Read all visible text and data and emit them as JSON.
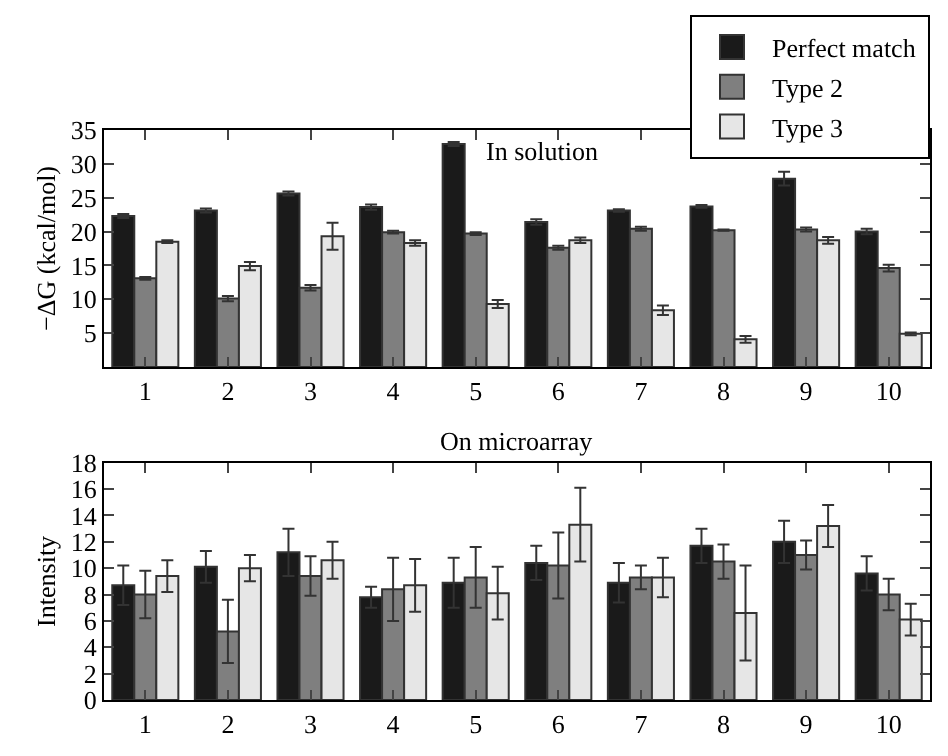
{
  "chart_data": [
    {
      "type": "bar",
      "title": "In solution",
      "ylabel": "−ΔG (kcal/mol)",
      "categories": [
        "1",
        "2",
        "3",
        "4",
        "5",
        "6",
        "7",
        "8",
        "9",
        "10"
      ],
      "ylim": [
        0,
        35
      ],
      "yticks": [
        5,
        10,
        15,
        20,
        25,
        30,
        35
      ],
      "legend": "top right",
      "series": [
        {
          "name": "Perfect match",
          "color": "#1a1a1a",
          "values": [
            22.3,
            23.1,
            25.6,
            23.6,
            32.9,
            21.4,
            23.1,
            23.7,
            27.8,
            20.0
          ],
          "errors": [
            0.3,
            0.3,
            0.3,
            0.4,
            0.3,
            0.4,
            0.2,
            0.2,
            1.0,
            0.4
          ]
        },
        {
          "name": "Type 2",
          "color": "#7f7f7f",
          "values": [
            13.1,
            10.1,
            11.7,
            19.9,
            19.7,
            17.6,
            20.4,
            20.2,
            20.3,
            14.6
          ],
          "errors": [
            0.2,
            0.4,
            0.4,
            0.2,
            0.2,
            0.3,
            0.3,
            0.1,
            0.3,
            0.5
          ]
        },
        {
          "name": "Type 3",
          "color": "#e6e6e6",
          "values": [
            18.5,
            14.9,
            19.3,
            18.3,
            9.3,
            18.7,
            8.4,
            4.1,
            18.7,
            4.9
          ],
          "errors": [
            0.2,
            0.6,
            2.0,
            0.4,
            0.6,
            0.4,
            0.7,
            0.5,
            0.5,
            0.2
          ]
        }
      ]
    },
    {
      "type": "bar",
      "title": "On microarray",
      "ylabel": "Intensity",
      "categories": [
        "1",
        "2",
        "3",
        "4",
        "5",
        "6",
        "7",
        "8",
        "9",
        "10"
      ],
      "ylim": [
        0,
        18
      ],
      "yticks": [
        0,
        2,
        4,
        6,
        8,
        10,
        12,
        14,
        16,
        18
      ],
      "legend": false,
      "series": [
        {
          "color": "#1a1a1a",
          "values": [
            8.7,
            10.1,
            11.2,
            7.8,
            8.9,
            10.4,
            8.9,
            11.7,
            12.0,
            9.6
          ],
          "errors": [
            1.5,
            1.2,
            1.8,
            0.8,
            1.9,
            1.3,
            1.5,
            1.3,
            1.6,
            1.3
          ]
        },
        {
          "color": "#7f7f7f",
          "values": [
            8.0,
            5.2,
            9.4,
            8.4,
            9.3,
            10.2,
            9.3,
            10.5,
            11.0,
            8.0
          ],
          "errors": [
            1.8,
            2.4,
            1.5,
            2.4,
            2.3,
            2.5,
            0.9,
            1.3,
            1.1,
            1.2
          ]
        },
        {
          "color": "#e6e6e6",
          "values": [
            9.4,
            10.0,
            10.6,
            8.7,
            8.1,
            13.3,
            9.3,
            6.6,
            13.2,
            6.1
          ],
          "errors": [
            1.2,
            1.0,
            1.4,
            2.0,
            2.0,
            2.8,
            1.5,
            3.6,
            1.6,
            1.2
          ]
        }
      ]
    }
  ]
}
